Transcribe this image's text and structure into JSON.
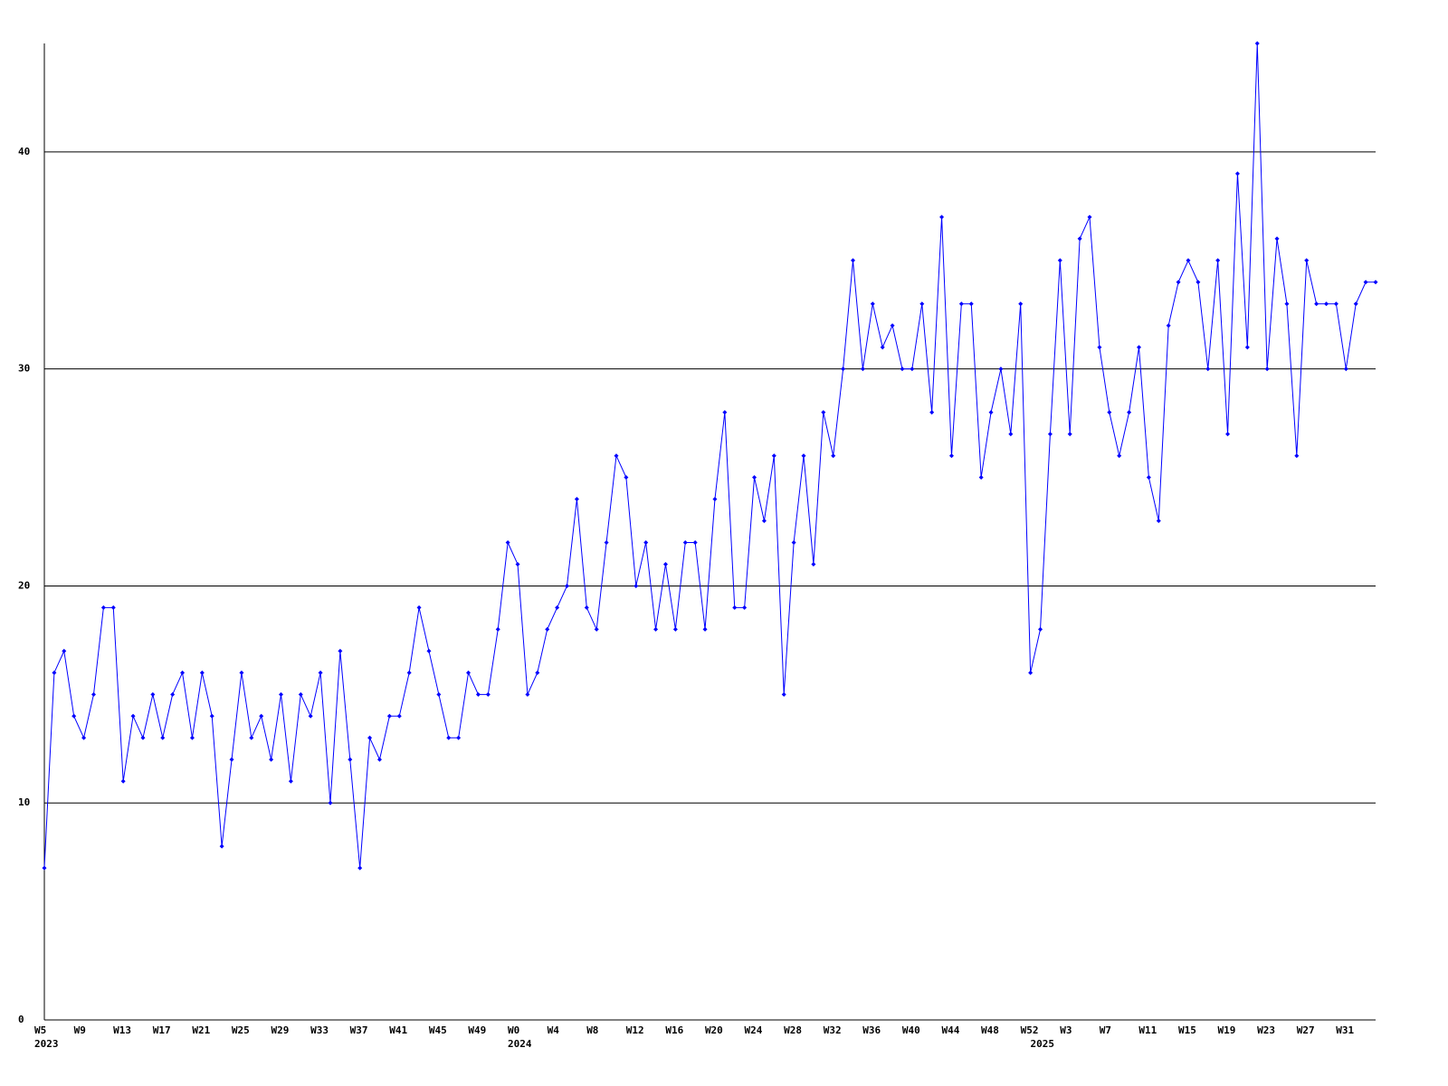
{
  "chart_data": {
    "type": "line",
    "color": "#0000ff",
    "grid": true,
    "markers": true,
    "categories": [
      "W5",
      null,
      null,
      null,
      "W9",
      null,
      null,
      null,
      "W13",
      null,
      null,
      null,
      "W17",
      null,
      null,
      null,
      "W21",
      null,
      null,
      null,
      "W25",
      null,
      null,
      null,
      "W29",
      null,
      null,
      null,
      "W33",
      null,
      null,
      null,
      "W37",
      null,
      null,
      null,
      "W41",
      null,
      null,
      null,
      "W45",
      null,
      null,
      null,
      "W49",
      null,
      null,
      null,
      "W0",
      null,
      null,
      null,
      "W4",
      null,
      null,
      null,
      "W8",
      null,
      null,
      null,
      "W12",
      null,
      null,
      null,
      "W16",
      null,
      null,
      null,
      "W20",
      null,
      null,
      null,
      "W24",
      null,
      null,
      null,
      "W28",
      null,
      null,
      null,
      "W32",
      null,
      null,
      null,
      "W36",
      null,
      null,
      null,
      "W40",
      null,
      null,
      null,
      "W44",
      null,
      null,
      null,
      "W48",
      null,
      null,
      null,
      "W52",
      null,
      null,
      null,
      "W3",
      null,
      null,
      null,
      "W7",
      null,
      null,
      null,
      "W11",
      null,
      null,
      null,
      "W15",
      null,
      null,
      null,
      "W19",
      null,
      null,
      null,
      "W23",
      null,
      null,
      null,
      "W27",
      null,
      null,
      null,
      "W31",
      null,
      null,
      null
    ],
    "year_labels": [
      "2023",
      null,
      null,
      null,
      null,
      null,
      null,
      null,
      null,
      null,
      null,
      null,
      null,
      null,
      null,
      null,
      null,
      null,
      null,
      null,
      null,
      null,
      null,
      null,
      null,
      null,
      null,
      null,
      null,
      null,
      null,
      null,
      null,
      null,
      null,
      null,
      null,
      null,
      null,
      null,
      null,
      null,
      null,
      null,
      null,
      null,
      null,
      null,
      "2024",
      null,
      null,
      null,
      null,
      null,
      null,
      null,
      null,
      null,
      null,
      null,
      null,
      null,
      null,
      null,
      null,
      null,
      null,
      null,
      null,
      null,
      null,
      null,
      null,
      null,
      null,
      null,
      null,
      null,
      null,
      null,
      null,
      null,
      null,
      null,
      null,
      null,
      null,
      null,
      null,
      null,
      null,
      null,
      null,
      null,
      null,
      null,
      null,
      null,
      null,
      null,
      null,
      "2025",
      null,
      null,
      null,
      null,
      null,
      null,
      null,
      null,
      null,
      null,
      null,
      null,
      null,
      null,
      null,
      null,
      null,
      null,
      null,
      null,
      null,
      null,
      null,
      null,
      null,
      null,
      null,
      null,
      null,
      null,
      null,
      null,
      null,
      null
    ],
    "values": [
      7,
      16,
      17,
      14,
      13,
      15,
      19,
      19,
      11,
      14,
      13,
      15,
      13,
      15,
      16,
      13,
      16,
      14,
      8,
      12,
      16,
      13,
      14,
      12,
      15,
      11,
      15,
      14,
      16,
      10,
      17,
      12,
      7,
      13,
      12,
      14,
      14,
      16,
      19,
      17,
      15,
      13,
      13,
      16,
      15,
      15,
      18,
      22,
      21,
      15,
      16,
      18,
      19,
      20,
      24,
      19,
      18,
      22,
      26,
      25,
      20,
      22,
      18,
      21,
      18,
      22,
      22,
      18,
      24,
      28,
      19,
      19,
      25,
      23,
      26,
      15,
      22,
      26,
      21,
      28,
      26,
      30,
      35,
      30,
      33,
      31,
      32,
      30,
      30,
      33,
      28,
      37,
      26,
      33,
      33,
      25,
      28,
      30,
      27,
      33,
      16,
      18,
      27,
      35,
      27,
      36,
      37,
      31,
      28,
      26,
      28,
      31,
      25,
      23,
      32,
      34,
      35,
      34,
      30,
      35,
      27,
      39,
      31,
      45,
      30,
      36,
      33,
      26,
      35,
      33,
      33,
      33,
      30,
      33,
      34,
      34
    ],
    "ylim": [
      0,
      45
    ],
    "yticks": [
      0,
      10,
      20,
      30,
      40
    ]
  }
}
